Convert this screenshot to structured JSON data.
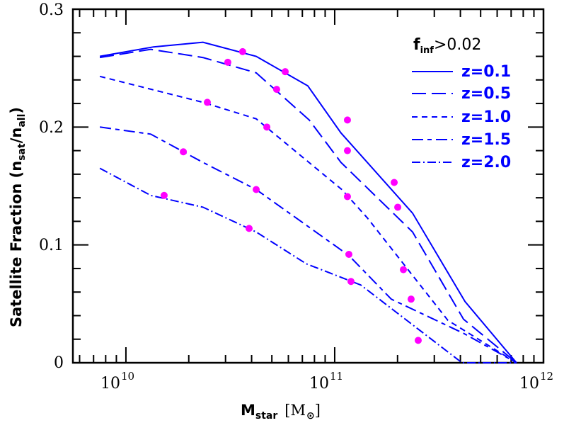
{
  "chart_data": {
    "type": "line",
    "title": "",
    "xlabel": "M_star [M_sun]",
    "xlabel_main": "M",
    "xlabel_sub": "star",
    "xlabel_unit_open": "[M",
    "xlabel_unit_close": "]",
    "ylabel": "Satellite Fraction (n_sat/n_all)",
    "ylabel_main": "Satellite Fraction (n",
    "ylabel_sub1": "sat",
    "ylabel_mid": "/n",
    "ylabel_sub2": "all",
    "ylabel_close": ")",
    "xscale": "log",
    "xlim_log10": [
      9.746,
      12.0
    ],
    "ylim": [
      0,
      0.3
    ],
    "x_tick_labels": [
      {
        "base": "10",
        "exp": "10",
        "log10": 10
      },
      {
        "base": "10",
        "exp": "11",
        "log10": 11
      },
      {
        "base": "10",
        "exp": "12",
        "log10": 12
      }
    ],
    "y_ticks": [
      0,
      0.1,
      0.2,
      0.3
    ],
    "y_tick_labels": [
      "0",
      "0.1",
      "0.2",
      "0.3"
    ],
    "legend": {
      "title_main": "f",
      "title_sub": "inf",
      "title_rest": ">0.02",
      "placement": "top-right"
    },
    "line_color": "#0000ff",
    "marker_color": "#ff00ff",
    "series": [
      {
        "name": "z=0.1",
        "style": "solid",
        "log10_x": [
          9.875,
          10.132,
          10.369,
          10.624,
          10.871,
          11.03,
          11.373,
          11.624,
          11.871
        ],
        "y": [
          0.26,
          0.268,
          0.272,
          0.26,
          0.235,
          0.195,
          0.127,
          0.052,
          0.0
        ],
        "markers_log10_x": [
          10.559,
          10.763,
          11.061,
          11.285
        ],
        "markers_y": [
          0.264,
          0.247,
          0.206,
          0.153
        ]
      },
      {
        "name": "z=0.5",
        "style": "long-dash",
        "log10_x": [
          9.875,
          10.119,
          10.369,
          10.624,
          10.878,
          11.03,
          11.373,
          11.617,
          11.871
        ],
        "y": [
          0.259,
          0.266,
          0.259,
          0.246,
          0.206,
          0.17,
          0.111,
          0.037,
          0.0
        ],
        "markers_log10_x": [
          10.488,
          10.722,
          11.061,
          11.302
        ],
        "markers_y": [
          0.255,
          0.232,
          0.18,
          0.132
        ]
      },
      {
        "name": "z=1.0",
        "style": "short-dash",
        "log10_x": [
          9.875,
          10.369,
          10.624,
          11.034,
          11.156,
          11.542,
          11.871
        ],
        "y": [
          0.243,
          0.221,
          0.207,
          0.147,
          0.123,
          0.036,
          0.0
        ],
        "markers_log10_x": [
          10.39,
          10.675,
          11.061,
          11.329
        ],
        "markers_y": [
          0.221,
          0.2,
          0.141,
          0.079
        ]
      },
      {
        "name": "z=1.5",
        "style": "dash-dot",
        "log10_x": [
          9.875,
          10.119,
          10.369,
          10.624,
          11.068,
          11.271,
          11.617,
          11.871
        ],
        "y": [
          0.2,
          0.194,
          0.17,
          0.147,
          0.091,
          0.054,
          0.025,
          0.0
        ],
        "markers_log10_x": [
          10.275,
          10.624,
          11.068,
          11.366
        ],
        "markers_y": [
          0.179,
          0.147,
          0.092,
          0.054
        ]
      },
      {
        "name": "z=2.0",
        "style": "dot-dash",
        "log10_x": [
          9.875,
          10.119,
          10.369,
          10.624,
          10.864,
          11.125,
          11.61,
          11.871
        ],
        "y": [
          0.165,
          0.142,
          0.132,
          0.111,
          0.084,
          0.066,
          0.0,
          0.0
        ],
        "markers_log10_x": [
          10.183,
          10.59,
          11.078,
          11.4
        ],
        "markers_y": [
          0.142,
          0.114,
          0.069,
          0.019
        ]
      }
    ]
  }
}
